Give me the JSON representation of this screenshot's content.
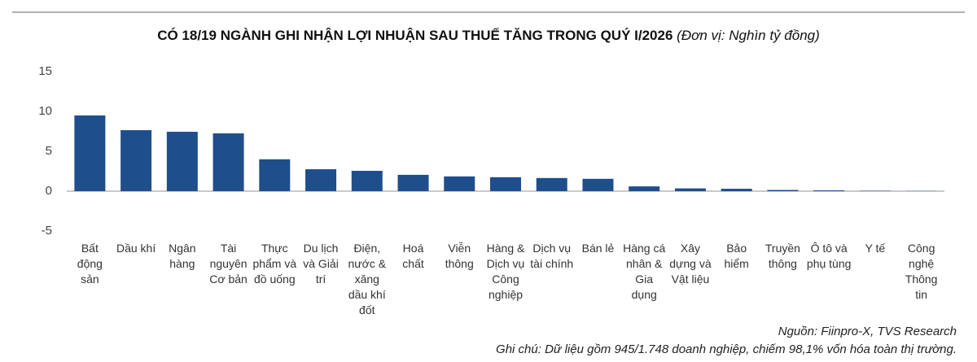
{
  "chart_data": {
    "type": "bar",
    "title": "CÓ 18/19 NGÀNH GHI NHẬN LỢI NHUẬN SAU THUẾ TĂNG TRONG QUÝ I/2026",
    "subtitle": "(Đơn vị: Nghìn tỷ đồng)",
    "categories": [
      "Bất động sản",
      "Dầu khí",
      "Ngân hàng",
      "Tài nguyên Cơ bản",
      "Thực phẩm và đồ uống",
      "Du lịch và Giải trí",
      "Điện, nước & xăng dầu khí đốt",
      "Hoá chất",
      "Viễn thông",
      "Hàng & Dịch vụ Công nghiệp",
      "Dịch vụ tài chính",
      "Bán lẻ",
      "Hàng cá nhân & Gia dụng",
      "Xây dựng và Vật liệu",
      "Bảo hiểm",
      "Truyền thông",
      "Ô tô và phụ tùng",
      "Y tế",
      "Công nghệ Thông tin"
    ],
    "values": [
      9.5,
      7.65,
      7.45,
      7.25,
      4.0,
      2.75,
      2.55,
      2.05,
      1.85,
      1.75,
      1.65,
      1.55,
      0.6,
      0.35,
      0.3,
      0.15,
      0.1,
      0.05,
      0.02
    ],
    "color": "#1f4e8c",
    "ylim": [
      -5,
      15
    ],
    "yticks": [
      -5,
      0,
      5,
      10,
      15
    ],
    "source": "Nguồn: Fiinpro-X, TVS Research",
    "note": "Ghi chú: Dữ liệu gồm 945/1.748 doanh nghiệp, chiếm 98,1% vốn hóa toàn thị trường."
  }
}
